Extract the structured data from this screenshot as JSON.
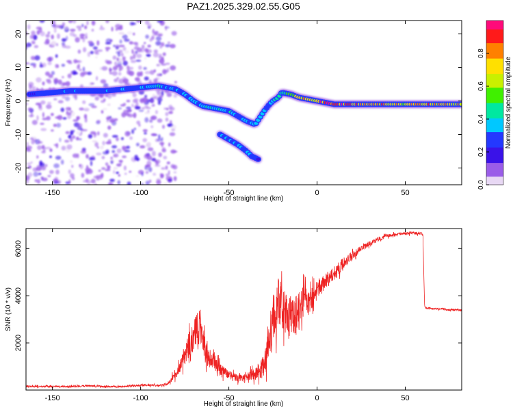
{
  "title": "PAZ1.2025.329.02.55.G05",
  "chart_data": [
    {
      "type": "heatmap",
      "xlabel": "Height of straight line (km)",
      "ylabel": "Frequency (Hz)",
      "xlim": [
        -165,
        82
      ],
      "ylim": [
        -25,
        24
      ],
      "xticks": [
        -150,
        -100,
        -50,
        0,
        50
      ],
      "yticks": [
        -20,
        -10,
        0,
        10,
        20
      ],
      "xtick_labels": [
        "-150",
        "-100",
        "-50",
        "0",
        "50"
      ],
      "ytick_labels": [
        "-20",
        "-10",
        "0",
        "10",
        "20"
      ],
      "colorbar": {
        "label": "Normalized spectral amplitude",
        "range": [
          0,
          1
        ],
        "ticks": [
          0.0,
          0.2,
          0.4,
          0.6,
          0.8
        ],
        "tick_labels": [
          "0.0",
          "0.2",
          "0.4",
          "0.6",
          "0.8"
        ],
        "colormap": [
          "#e8d8f4",
          "#9a5de8",
          "#3a12e8",
          "#2438ff",
          "#00c8ff",
          "#00e8a0",
          "#40f000",
          "#c8f000",
          "#ffe000",
          "#ff8000",
          "#ff1a1a",
          "#ff0a7a"
        ]
      },
      "main_ridge": {
        "x": [
          -163,
          -150,
          -140,
          -130,
          -120,
          -110,
          -100,
          -90,
          -85,
          -80,
          -75,
          -70,
          -65,
          -60,
          -55,
          -50,
          -45,
          -40,
          -35,
          -30,
          -27,
          -25,
          -22,
          -20,
          -15,
          -10,
          -5,
          0,
          5,
          10,
          20,
          30,
          40,
          50,
          60,
          70,
          82
        ],
        "y": [
          2,
          2.5,
          3,
          3,
          3,
          3.5,
          4,
          4.5,
          4,
          3.5,
          2,
          0,
          -1.5,
          -2,
          -2.5,
          -3,
          -4.5,
          -6,
          -7,
          -3,
          -1,
          0,
          1,
          2.5,
          2,
          1,
          0.5,
          0,
          -0.5,
          -1,
          -1,
          -1,
          -1,
          -1,
          -1,
          -1,
          -1
        ],
        "amplitude": [
          0.2,
          0.3,
          0.3,
          0.3,
          0.3,
          0.3,
          0.35,
          0.4,
          0.4,
          0.35,
          0.35,
          0.35,
          0.35,
          0.4,
          0.4,
          0.4,
          0.35,
          0.35,
          0.4,
          0.35,
          0.35,
          0.4,
          0.5,
          0.55,
          0.6,
          0.7,
          0.8,
          0.85,
          0.9,
          0.95,
          0.9,
          0.85,
          0.8,
          0.75,
          0.8,
          0.8,
          0.8
        ]
      },
      "secondary_ridge": {
        "x": [
          -55,
          -50,
          -45,
          -40,
          -37,
          -33
        ],
        "y": [
          -10,
          -11.5,
          -13,
          -15,
          -16.5,
          -17.5
        ],
        "amplitude": [
          0.35,
          0.4,
          0.35,
          0.3,
          0.3,
          0.25
        ]
      },
      "noise_region": {
        "x_range": [
          -165,
          -80
        ],
        "y_range": [
          -25,
          24
        ],
        "amplitude": 0.1
      }
    },
    {
      "type": "line",
      "xlabel": "Height of straight line (km)",
      "ylabel": "SNR (10 * v/v)",
      "xlim": [
        -165,
        82
      ],
      "ylim": [
        0,
        6850
      ],
      "xticks": [
        -150,
        -100,
        -50,
        0,
        50
      ],
      "yticks": [
        2000,
        4000,
        6000
      ],
      "xtick_labels": [
        "-150",
        "-100",
        "-50",
        "0",
        "50"
      ],
      "ytick_labels": [
        "2000",
        "4000",
        "6000"
      ],
      "series": [
        {
          "name": "SNR",
          "color": "#ee2222",
          "x": [
            -165,
            -150,
            -140,
            -130,
            -120,
            -110,
            -100,
            -90,
            -85,
            -80,
            -75,
            -72,
            -70,
            -68,
            -66,
            -64,
            -62,
            -60,
            -55,
            -50,
            -45,
            -40,
            -35,
            -30,
            -28,
            -26,
            -24,
            -22,
            -20,
            -18,
            -15,
            -12,
            -10,
            -7,
            -5,
            -2,
            0,
            5,
            10,
            15,
            20,
            25,
            30,
            35,
            40,
            45,
            50,
            55,
            59,
            60,
            61,
            65,
            70,
            75,
            82
          ],
          "y": [
            150,
            150,
            150,
            180,
            150,
            150,
            200,
            200,
            250,
            700,
            1400,
            1800,
            2200,
            2600,
            2500,
            1900,
            1400,
            1300,
            900,
            650,
            500,
            550,
            700,
            1000,
            1700,
            2600,
            3400,
            3800,
            3500,
            3300,
            3100,
            3200,
            3600,
            3750,
            3700,
            3900,
            4200,
            4600,
            5000,
            5400,
            5700,
            6000,
            6200,
            6400,
            6550,
            6600,
            6650,
            6650,
            6650,
            6550,
            3500,
            3450,
            3450,
            3400,
            3400
          ],
          "noise": [
            50,
            50,
            50,
            60,
            50,
            50,
            60,
            60,
            80,
            250,
            600,
            900,
            1000,
            1000,
            900,
            800,
            600,
            500,
            350,
            250,
            220,
            250,
            350,
            700,
            1000,
            1300,
            1500,
            1500,
            1400,
            1300,
            1200,
            1100,
            1000,
            900,
            800,
            700,
            600,
            500,
            450,
            350,
            250,
            180,
            150,
            120,
            100,
            80,
            80,
            80,
            80,
            60,
            60,
            50,
            50,
            50,
            50
          ]
        }
      ]
    }
  ]
}
